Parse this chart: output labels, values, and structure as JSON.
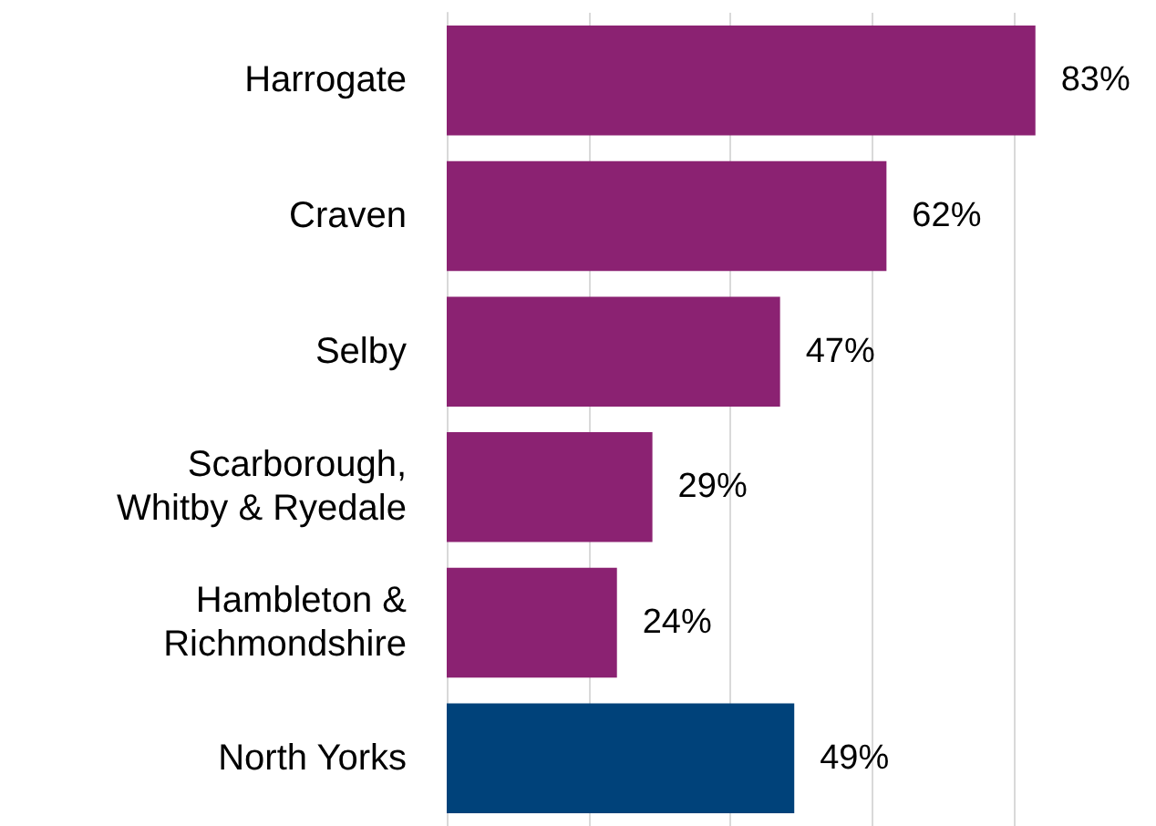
{
  "chart_data": {
    "type": "bar",
    "orientation": "horizontal",
    "categories": [
      "Harrogate",
      "Craven",
      "Selby",
      "Scarborough,\nWhitby & Ryedale",
      "Hambleton &\nRichmondshire",
      "North Yorks"
    ],
    "values": [
      83,
      62,
      47,
      29,
      24,
      49
    ],
    "value_labels": [
      "83%",
      "62%",
      "47%",
      "29%",
      "24%",
      "49%"
    ],
    "colors": [
      "#8b2272",
      "#8b2272",
      "#8b2272",
      "#8b2272",
      "#8b2272",
      "#00427a"
    ],
    "grid": "x",
    "tick_labels": "y"
  }
}
